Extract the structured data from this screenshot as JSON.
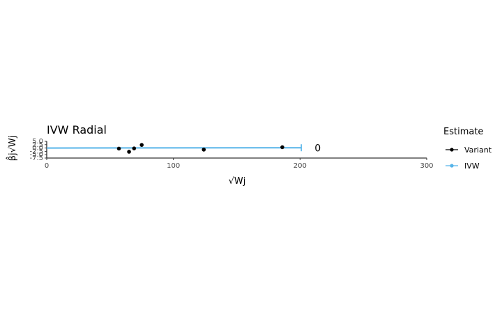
{
  "chart_data": {
    "type": "scatter",
    "title": "IVW Radial",
    "xlabel": "√Wj",
    "ylabel": "β̂j√Wj",
    "xlim": [
      0,
      300
    ],
    "ylim": [
      -7.5,
      5.0
    ],
    "x_ticks": [
      0,
      100,
      200,
      300
    ],
    "x_tick_labels": [
      "0",
      "100",
      "200",
      "300"
    ],
    "y_ticks": [
      -7.5,
      -5.0,
      -2.5,
      0.0,
      2.5,
      5.0
    ],
    "y_tick_labels": [
      "-7.5",
      "-5.0",
      "-2.5",
      "0.0",
      "2.5",
      "5.0"
    ],
    "grid": false,
    "series": [
      {
        "name": "Variant",
        "color": "#000000",
        "points": [
          {
            "x": 57,
            "y": -0.4
          },
          {
            "x": 65,
            "y": -2.8
          },
          {
            "x": 69,
            "y": -0.3
          },
          {
            "x": 75,
            "y": 2.3
          },
          {
            "x": 124,
            "y": -1.2
          },
          {
            "x": 186,
            "y": 0.6
          }
        ]
      },
      {
        "name": "IVW",
        "color": "#56B4E9",
        "line": {
          "x_start": 0,
          "x_end": 201,
          "slope": 0.001
        }
      }
    ],
    "annotations": [
      {
        "text": "0",
        "x": 214,
        "y": 0.0
      }
    ],
    "legend": {
      "title": "Estimate",
      "position": "right",
      "entries": [
        {
          "label": "Variant",
          "color": "#000000"
        },
        {
          "label": "IVW",
          "color": "#56B4E9"
        }
      ]
    }
  }
}
